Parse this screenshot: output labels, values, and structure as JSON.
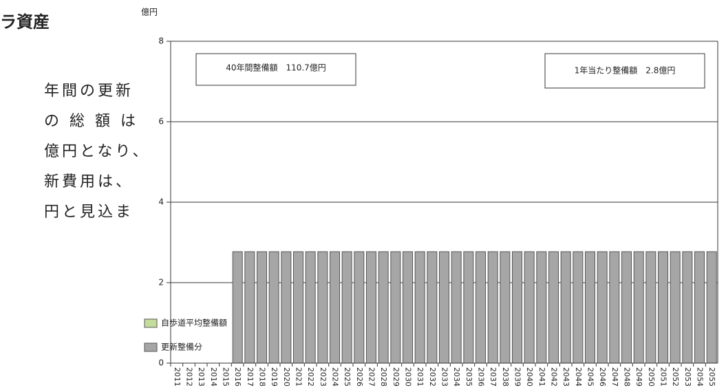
{
  "document": {
    "heading": "ラ資産",
    "lines": [
      "年間の更新",
      "の 総 額 は",
      "億円となり、",
      "新費用は、",
      "円と見込ま"
    ]
  },
  "chart_data": {
    "type": "bar",
    "stacked": true,
    "ylabel": "億円",
    "categories": [
      "2011",
      "2012",
      "2013",
      "2014",
      "2015",
      "2016",
      "2017",
      "2018",
      "2019",
      "2020",
      "2021",
      "2022",
      "2023",
      "2024",
      "2025",
      "2026",
      "2027",
      "2028",
      "2029",
      "2030",
      "2031",
      "2032",
      "2033",
      "2034",
      "2035",
      "2036",
      "2037",
      "2038",
      "2039",
      "2040",
      "2041",
      "2042",
      "2043",
      "2044",
      "2045",
      "2046",
      "2047",
      "2048",
      "2049",
      "2050",
      "2051",
      "2052",
      "2053",
      "2054",
      "2055"
    ],
    "series": [
      {
        "name": "更新整備分",
        "color": "#a6a6a6",
        "values": [
          0,
          0,
          0,
          0,
          0,
          2.77,
          2.77,
          2.77,
          2.77,
          2.77,
          2.77,
          2.77,
          2.77,
          2.77,
          2.77,
          2.77,
          2.77,
          2.77,
          2.77,
          2.77,
          2.77,
          2.77,
          2.77,
          2.77,
          2.77,
          2.77,
          2.77,
          2.77,
          2.77,
          2.77,
          2.77,
          2.77,
          2.77,
          2.77,
          2.77,
          2.77,
          2.77,
          2.77,
          2.77,
          2.77,
          2.77,
          2.77,
          2.77,
          2.77,
          2.77
        ]
      },
      {
        "name": "自歩道平均整備額",
        "color": "#c4dd9c",
        "values": [
          0,
          0,
          0,
          0,
          0,
          0,
          0,
          0,
          0,
          0,
          0,
          0,
          0,
          0,
          0,
          0,
          0,
          0,
          0,
          0,
          0,
          0,
          0,
          0,
          0,
          0,
          0,
          0,
          0,
          0,
          0,
          0,
          0,
          0,
          0,
          0,
          0,
          0,
          0,
          0,
          0,
          0,
          0,
          0,
          0
        ]
      }
    ],
    "annotations": [
      "40年間整備額　110.7億円",
      "1年当たり整備額　2.8億円"
    ],
    "ylim": [
      0,
      8
    ],
    "yticks": [
      0,
      2,
      4,
      6,
      8
    ],
    "grid": true
  }
}
